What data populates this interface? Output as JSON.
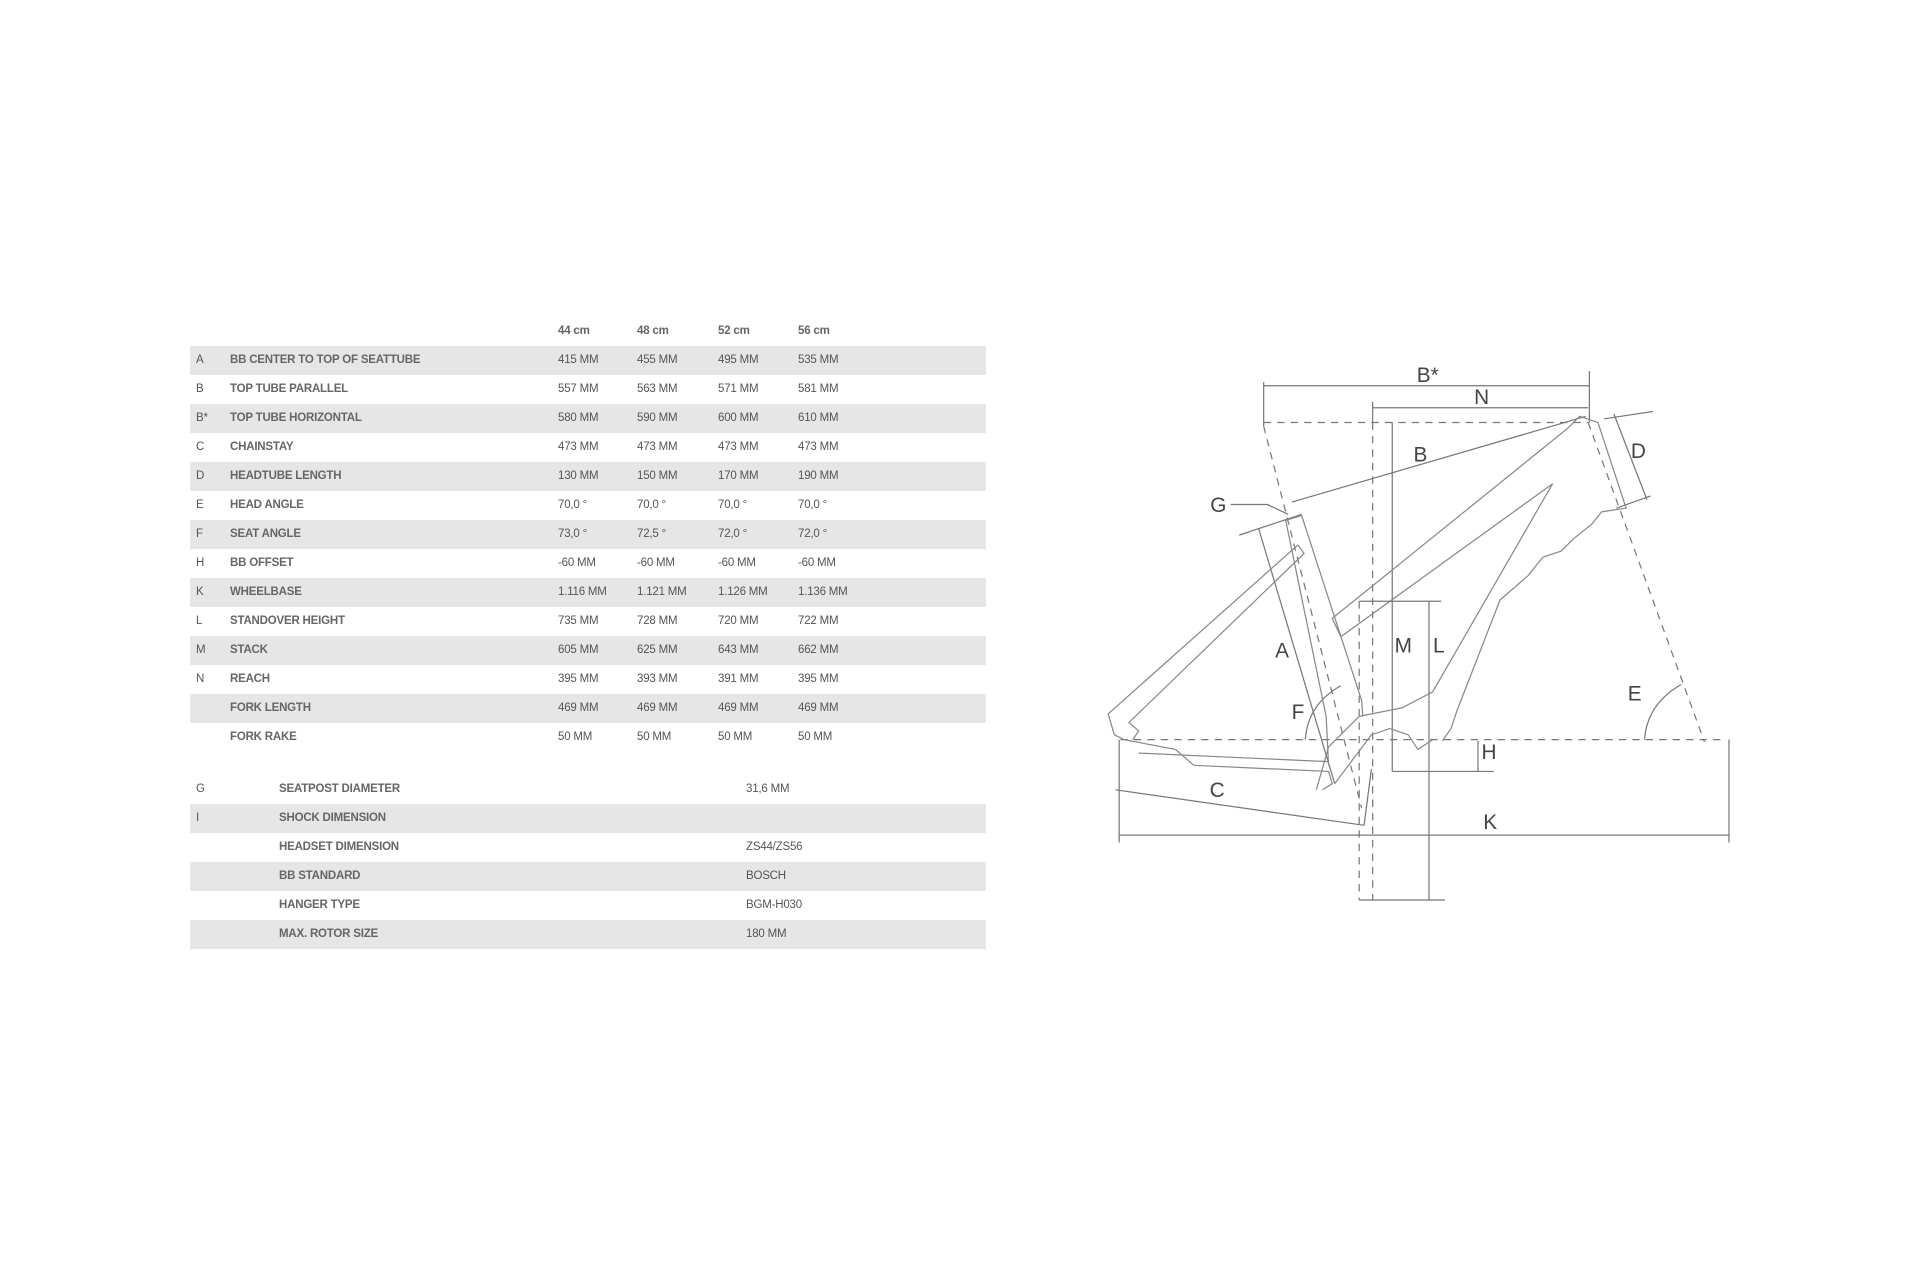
{
  "geometry_table": {
    "columns": [
      "44 cm",
      "48 cm",
      "52 cm",
      "56 cm"
    ],
    "rows": [
      {
        "letter": "A",
        "label": "BB CENTER TO TOP OF SEATTUBE",
        "values": [
          "415 MM",
          "455 MM",
          "495 MM",
          "535 MM"
        ]
      },
      {
        "letter": "B",
        "label": "TOP TUBE PARALLEL",
        "values": [
          "557 MM",
          "563 MM",
          "571 MM",
          "581 MM"
        ]
      },
      {
        "letter": "B*",
        "label": "TOP TUBE HORIZONTAL",
        "values": [
          "580 MM",
          "590 MM",
          "600 MM",
          "610 MM"
        ]
      },
      {
        "letter": "C",
        "label": "CHAINSTAY",
        "values": [
          "473 MM",
          "473 MM",
          "473 MM",
          "473 MM"
        ]
      },
      {
        "letter": "D",
        "label": "HEADTUBE LENGTH",
        "values": [
          "130 MM",
          "150 MM",
          "170 MM",
          "190 MM"
        ]
      },
      {
        "letter": "E",
        "label": "HEAD ANGLE",
        "values": [
          "70,0 °",
          "70,0 °",
          "70,0 °",
          "70,0 °"
        ]
      },
      {
        "letter": "F",
        "label": "SEAT ANGLE",
        "values": [
          "73,0 °",
          "72,5 °",
          "72,0 °",
          "72,0 °"
        ]
      },
      {
        "letter": "H",
        "label": "BB OFFSET",
        "values": [
          "-60 MM",
          "-60 MM",
          "-60 MM",
          "-60 MM"
        ]
      },
      {
        "letter": "K",
        "label": "WHEELBASE",
        "values": [
          "1.116 MM",
          "1.121 MM",
          "1.126 MM",
          "1.136 MM"
        ]
      },
      {
        "letter": "L",
        "label": "STANDOVER HEIGHT",
        "values": [
          "735 MM",
          "728 MM",
          "720 MM",
          "722 MM"
        ]
      },
      {
        "letter": "M",
        "label": "STACK",
        "values": [
          "605 MM",
          "625 MM",
          "643 MM",
          "662 MM"
        ]
      },
      {
        "letter": "N",
        "label": "REACH",
        "values": [
          "395 MM",
          "393 MM",
          "391 MM",
          "395 MM"
        ]
      },
      {
        "letter": "",
        "label": "FORK LENGTH",
        "values": [
          "469 MM",
          "469 MM",
          "469 MM",
          "469 MM"
        ]
      },
      {
        "letter": "",
        "label": "FORK RAKE",
        "values": [
          "50 MM",
          "50 MM",
          "50 MM",
          "50 MM"
        ]
      }
    ]
  },
  "spec_table": {
    "rows": [
      {
        "letter": "G",
        "label": "SEATPOST DIAMETER",
        "value": "31,6 MM"
      },
      {
        "letter": "I",
        "label": "SHOCK DIMENSION",
        "value": ""
      },
      {
        "letter": "",
        "label": "HEADSET DIMENSION",
        "value": "ZS44/ZS56"
      },
      {
        "letter": "",
        "label": "BB STANDARD",
        "value": "BOSCH"
      },
      {
        "letter": "",
        "label": "HANGER TYPE",
        "value": "BGM-H030"
      },
      {
        "letter": "",
        "label": "MAX. ROTOR SIZE",
        "value": "180 MM"
      }
    ]
  },
  "diagram": {
    "labels": {
      "Bstar": "B*",
      "N": "N",
      "B": "B",
      "D": "D",
      "G": "G",
      "A": "A",
      "M": "M",
      "L": "L",
      "F": "F",
      "E": "E",
      "H": "H",
      "C": "C",
      "K": "K"
    }
  },
  "colors": {
    "band": "#e6e6e6",
    "text": "#555555",
    "lines": "#777777"
  }
}
